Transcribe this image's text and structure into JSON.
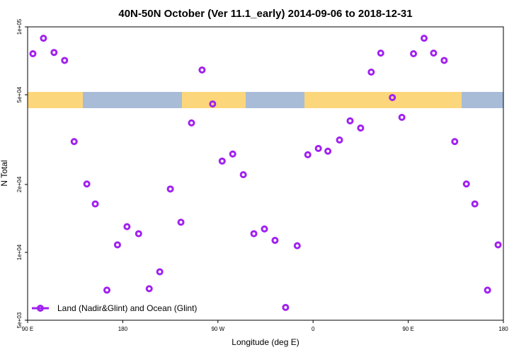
{
  "chart_data": {
    "type": "scatter",
    "title": "40N-50N October (Ver 11.1_early)   2014-09-06 to 2018-12-31",
    "x_label": "Longitude (deg E)",
    "y_label": "N Total",
    "xlim": [
      90,
      540
    ],
    "xticks": [
      {
        "value": 90,
        "label": "90 E"
      },
      180,
      {
        "value": 270,
        "label": "90 W"
      },
      {
        "value": 360,
        "label": "0"
      },
      {
        "value": 450,
        "label": "90 E"
      },
      {
        "value": 540,
        "label": "180"
      }
    ],
    "ylim": [
      5000,
      100000
    ],
    "log_y": true,
    "yticks": [
      {
        "value": 5000,
        "label": "5e+03"
      },
      {
        "value": 10000,
        "label": "1e+04"
      },
      {
        "value": 20000,
        "label": "2e+04"
      },
      {
        "value": 50000,
        "label": "5e+04"
      },
      {
        "value": 100000,
        "label": "1e+05"
      }
    ],
    "legend_position": "lower left",
    "series": [
      {
        "name": "Land (Nadir&Glint) and Ocean (Glint)",
        "color": "#a020f0",
        "x": [
          95,
          105,
          115,
          125,
          134,
          146,
          154,
          165,
          175,
          184,
          195,
          205,
          215,
          225,
          235,
          245,
          255,
          265,
          274,
          284,
          294,
          304,
          314,
          324,
          334,
          345,
          355,
          365,
          374,
          385,
          395,
          405,
          415,
          424,
          435,
          444,
          455,
          465,
          474,
          484,
          494,
          505,
          513,
          525,
          535
        ],
        "values": [
          76000,
          89000,
          77000,
          71000,
          31000,
          20100,
          16400,
          6800,
          10800,
          13000,
          12100,
          6900,
          8200,
          19100,
          13600,
          37500,
          64400,
          45500,
          25400,
          27300,
          22100,
          12100,
          12700,
          11300,
          5700,
          10700,
          27100,
          28900,
          28100,
          31500,
          38300,
          35600,
          63000,
          76500,
          48600,
          39700,
          76000,
          89000,
          76500,
          71000,
          31000,
          20100,
          16400,
          6800,
          10800
        ]
      }
    ]
  }
}
